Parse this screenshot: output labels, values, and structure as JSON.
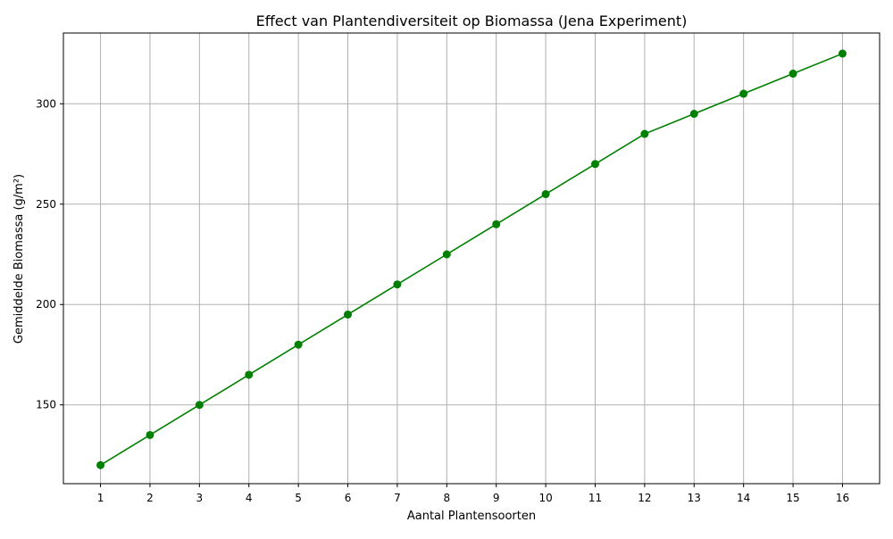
{
  "chart_data": {
    "type": "line",
    "title": "Effect van Plantendiversiteit op Biomassa (Jena Experiment)",
    "xlabel": "Aantal Plantensoorten",
    "ylabel": "Gemiddelde Biomassa (g/m²)",
    "x": [
      1,
      2,
      3,
      4,
      5,
      6,
      7,
      8,
      9,
      10,
      11,
      12,
      13,
      14,
      15,
      16
    ],
    "xticks": [
      "1",
      "2",
      "3",
      "4",
      "5",
      "6",
      "7",
      "8",
      "9",
      "10",
      "11",
      "12",
      "13",
      "14",
      "15",
      "16"
    ],
    "xlim": [
      0.25,
      16.75
    ],
    "yticks": [
      150,
      200,
      250,
      300
    ],
    "ylim": [
      110.75,
      335.25
    ],
    "grid": true,
    "series": [
      {
        "values": [
          120,
          135,
          150,
          165,
          180,
          195,
          210,
          225,
          240,
          255,
          270,
          285,
          295,
          305,
          315,
          325
        ],
        "color": "#008000",
        "marker": "circle"
      }
    ]
  }
}
